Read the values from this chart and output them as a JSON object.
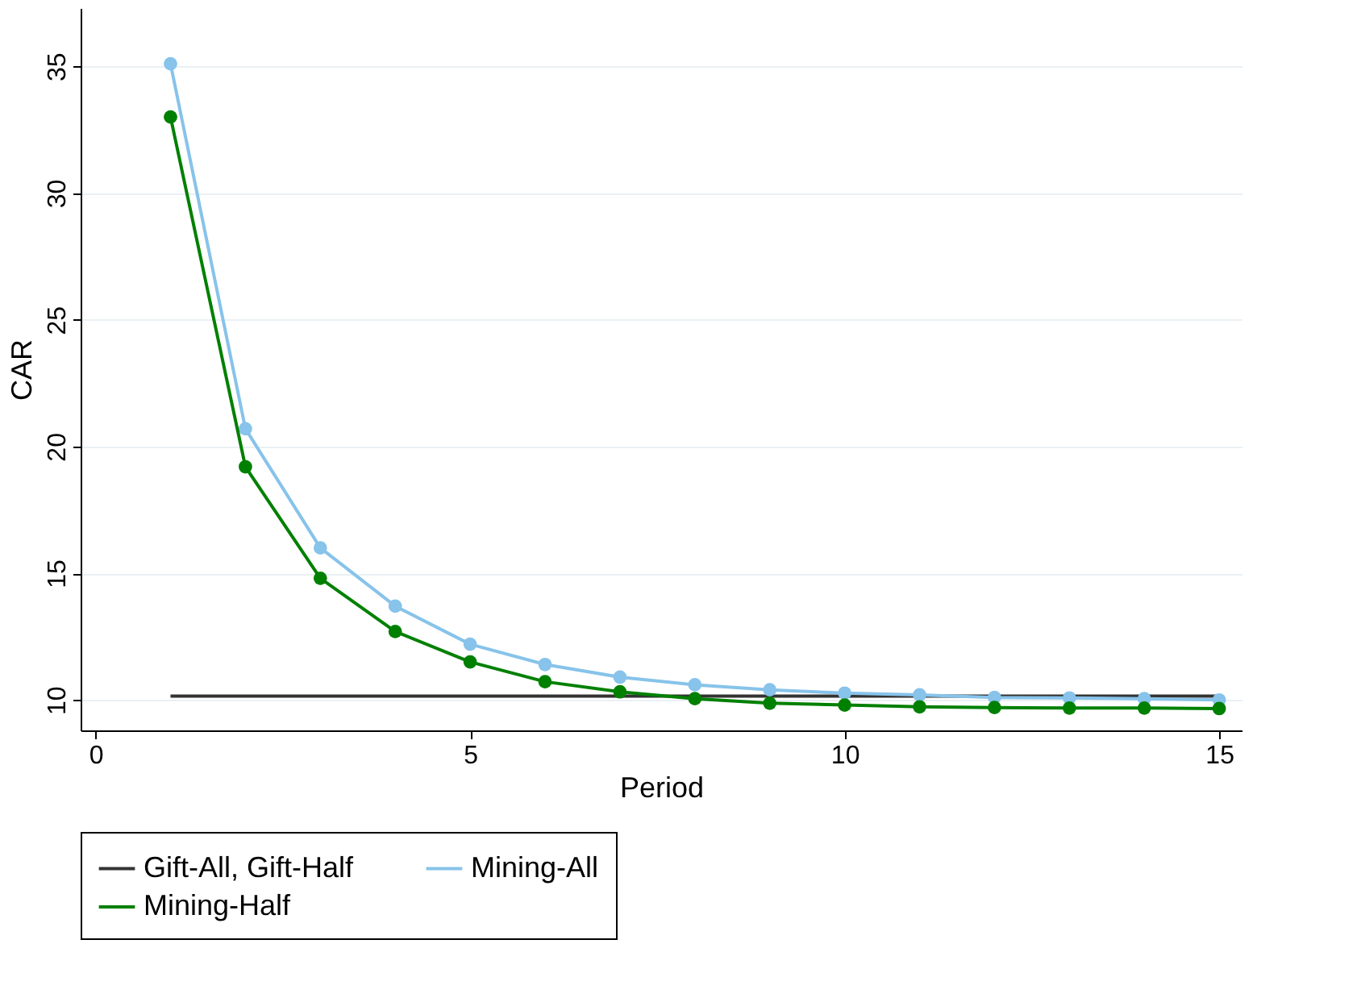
{
  "chart_data": {
    "type": "line",
    "xlabel": "Period",
    "ylabel": "CAR",
    "xlim": [
      -0.2,
      15.3
    ],
    "ylim": [
      8.8,
      37.3
    ],
    "xticks": [
      0,
      5,
      10,
      15
    ],
    "yticks": [
      10,
      15,
      20,
      25,
      30,
      35
    ],
    "grid": "y",
    "legend": "bottom",
    "series": [
      {
        "name": "Gift-All, Gift-Half",
        "color": "#333333",
        "marker": "none",
        "x": [
          1,
          15
        ],
        "values": [
          10.15,
          10.15
        ]
      },
      {
        "name": "Mining-All",
        "color": "#87c3ea",
        "marker": "circle",
        "x": [
          1,
          2,
          3,
          4,
          5,
          6,
          7,
          8,
          9,
          10,
          11,
          12,
          13,
          14,
          15
        ],
        "values": [
          35.1,
          20.7,
          16.0,
          13.7,
          12.2,
          11.4,
          10.9,
          10.6,
          10.4,
          10.27,
          10.2,
          10.1,
          10.08,
          10.05,
          10.0
        ]
      },
      {
        "name": "Mining-Half",
        "color": "#008000",
        "marker": "circle",
        "x": [
          1,
          2,
          3,
          4,
          5,
          6,
          7,
          8,
          9,
          10,
          11,
          12,
          13,
          14,
          15
        ],
        "values": [
          33.0,
          19.2,
          14.8,
          12.7,
          11.5,
          10.72,
          10.32,
          10.05,
          9.87,
          9.8,
          9.73,
          9.7,
          9.68,
          9.68,
          9.66
        ]
      }
    ]
  }
}
